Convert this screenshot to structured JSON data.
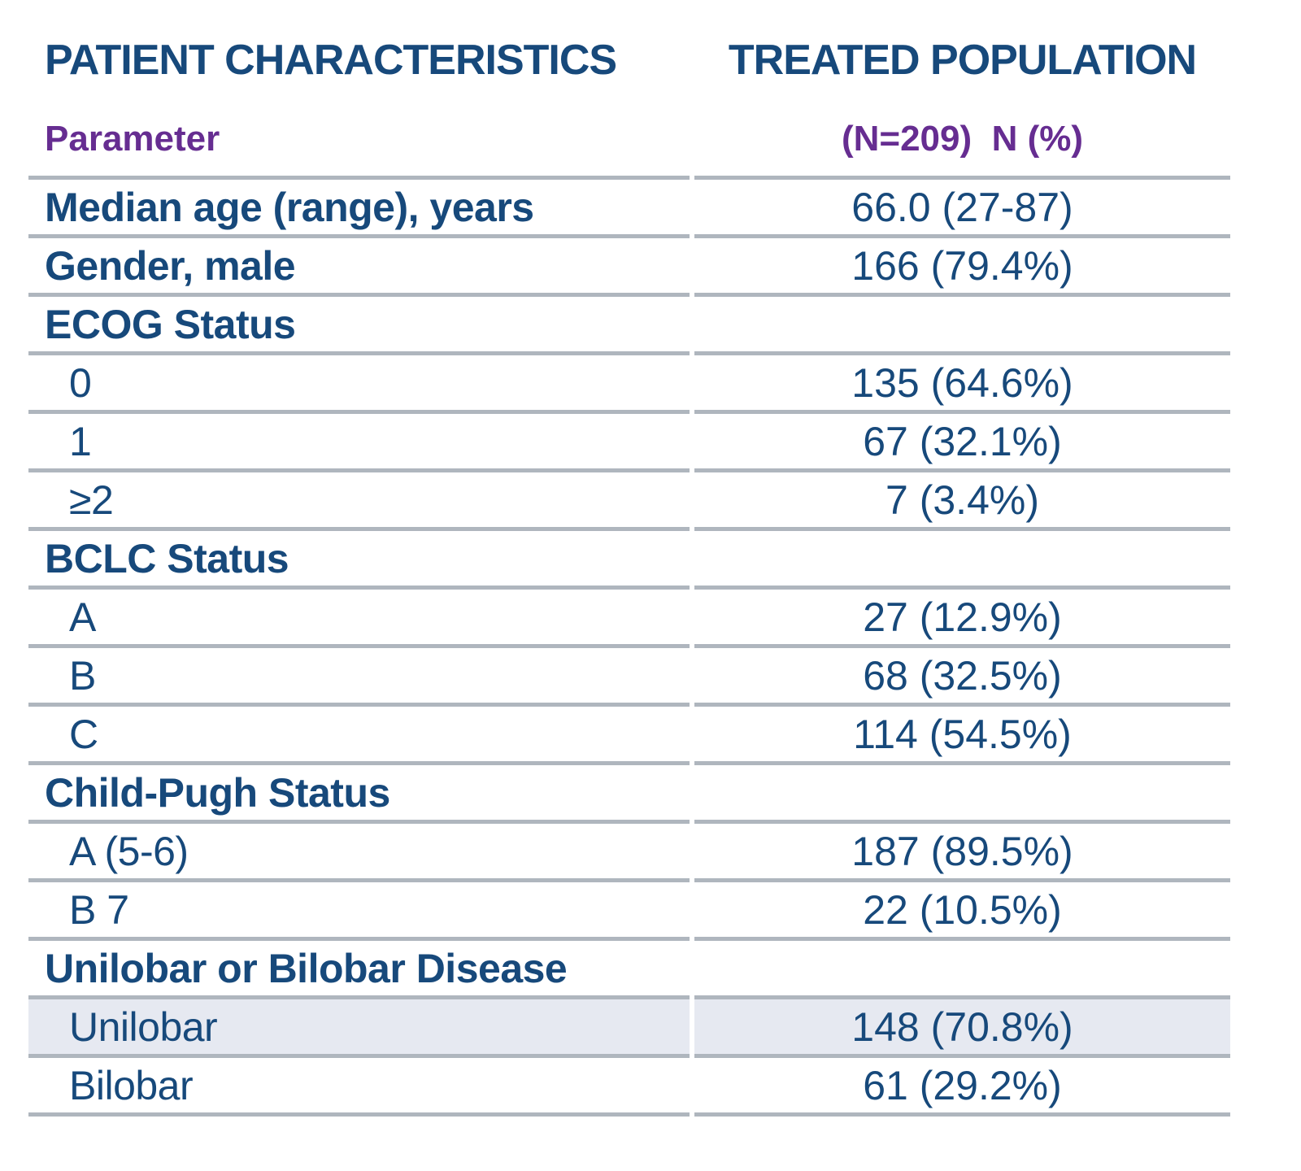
{
  "header": {
    "left_title": "PATIENT CHARACTERISTICS",
    "right_title": "TREATED POPULATION"
  },
  "columns": {
    "parameter_label": "Parameter",
    "population_label": "(N=209)  N (%)"
  },
  "colors": {
    "text_blue": "#17497B",
    "header_purple": "#662D91",
    "divider_gray": "#AFB6BE",
    "highlight_row_bg": "#E6E9F1"
  },
  "chart_data": {
    "type": "table",
    "title": "PATIENT CHARACTERISTICS — TREATED POPULATION (N=209)",
    "columns": [
      "Parameter",
      "N (%)"
    ],
    "rows": [
      [
        "Median age (range), years",
        "66.0 (27-87)"
      ],
      [
        "Gender, male",
        "166 (79.4%)"
      ],
      [
        "ECOG Status",
        ""
      ],
      [
        "0",
        "135 (64.6%)"
      ],
      [
        "1",
        "67 (32.1%)"
      ],
      [
        "≥2",
        "7 (3.4%)"
      ],
      [
        "BCLC Status",
        ""
      ],
      [
        "A",
        "27 (12.9%)"
      ],
      [
        "B",
        "68 (32.5%)"
      ],
      [
        "C",
        "114 (54.5%)"
      ],
      [
        "Child-Pugh Status",
        ""
      ],
      [
        "A (5-6)",
        "187 (89.5%)"
      ],
      [
        "B 7",
        "22 (10.5%)"
      ],
      [
        "Unilobar or Bilobar Disease",
        ""
      ],
      [
        "Unilobar",
        "148 (70.8%)"
      ],
      [
        "Bilobar",
        "61 (29.2%)"
      ]
    ]
  },
  "rows": [
    {
      "label": "Median age (range), years",
      "value": "66.0 (27-87)",
      "style": "bold",
      "highlighted": false
    },
    {
      "label": "Gender, male",
      "value": "166 (79.4%)",
      "style": "bold",
      "highlighted": false
    },
    {
      "label": "ECOG Status",
      "value": "",
      "style": "section",
      "highlighted": false
    },
    {
      "label": "0",
      "value": "135 (64.6%)",
      "style": "sub",
      "highlighted": false
    },
    {
      "label": "1",
      "value": "67 (32.1%)",
      "style": "sub",
      "highlighted": false
    },
    {
      "label": "≥2",
      "value": "7 (3.4%)",
      "style": "sub",
      "highlighted": false
    },
    {
      "label": "BCLC Status",
      "value": "",
      "style": "section",
      "highlighted": false
    },
    {
      "label": "A",
      "value": "27 (12.9%)",
      "style": "sub",
      "highlighted": false
    },
    {
      "label": "B",
      "value": "68 (32.5%)",
      "style": "sub",
      "highlighted": false
    },
    {
      "label": "C",
      "value": "114 (54.5%)",
      "style": "sub",
      "highlighted": false
    },
    {
      "label": "Child-Pugh Status",
      "value": "",
      "style": "section",
      "highlighted": false
    },
    {
      "label": "A (5-6)",
      "value": "187 (89.5%)",
      "style": "sub",
      "highlighted": false
    },
    {
      "label": "B 7",
      "value": "22 (10.5%)",
      "style": "sub",
      "highlighted": false
    },
    {
      "label": "Unilobar or Bilobar Disease",
      "value": "",
      "style": "section",
      "highlighted": false
    },
    {
      "label": "Unilobar",
      "value": "148 (70.8%)",
      "style": "sub",
      "highlighted": true
    },
    {
      "label": "Bilobar",
      "value": "61 (29.2%)",
      "style": "sub",
      "highlighted": false
    }
  ]
}
